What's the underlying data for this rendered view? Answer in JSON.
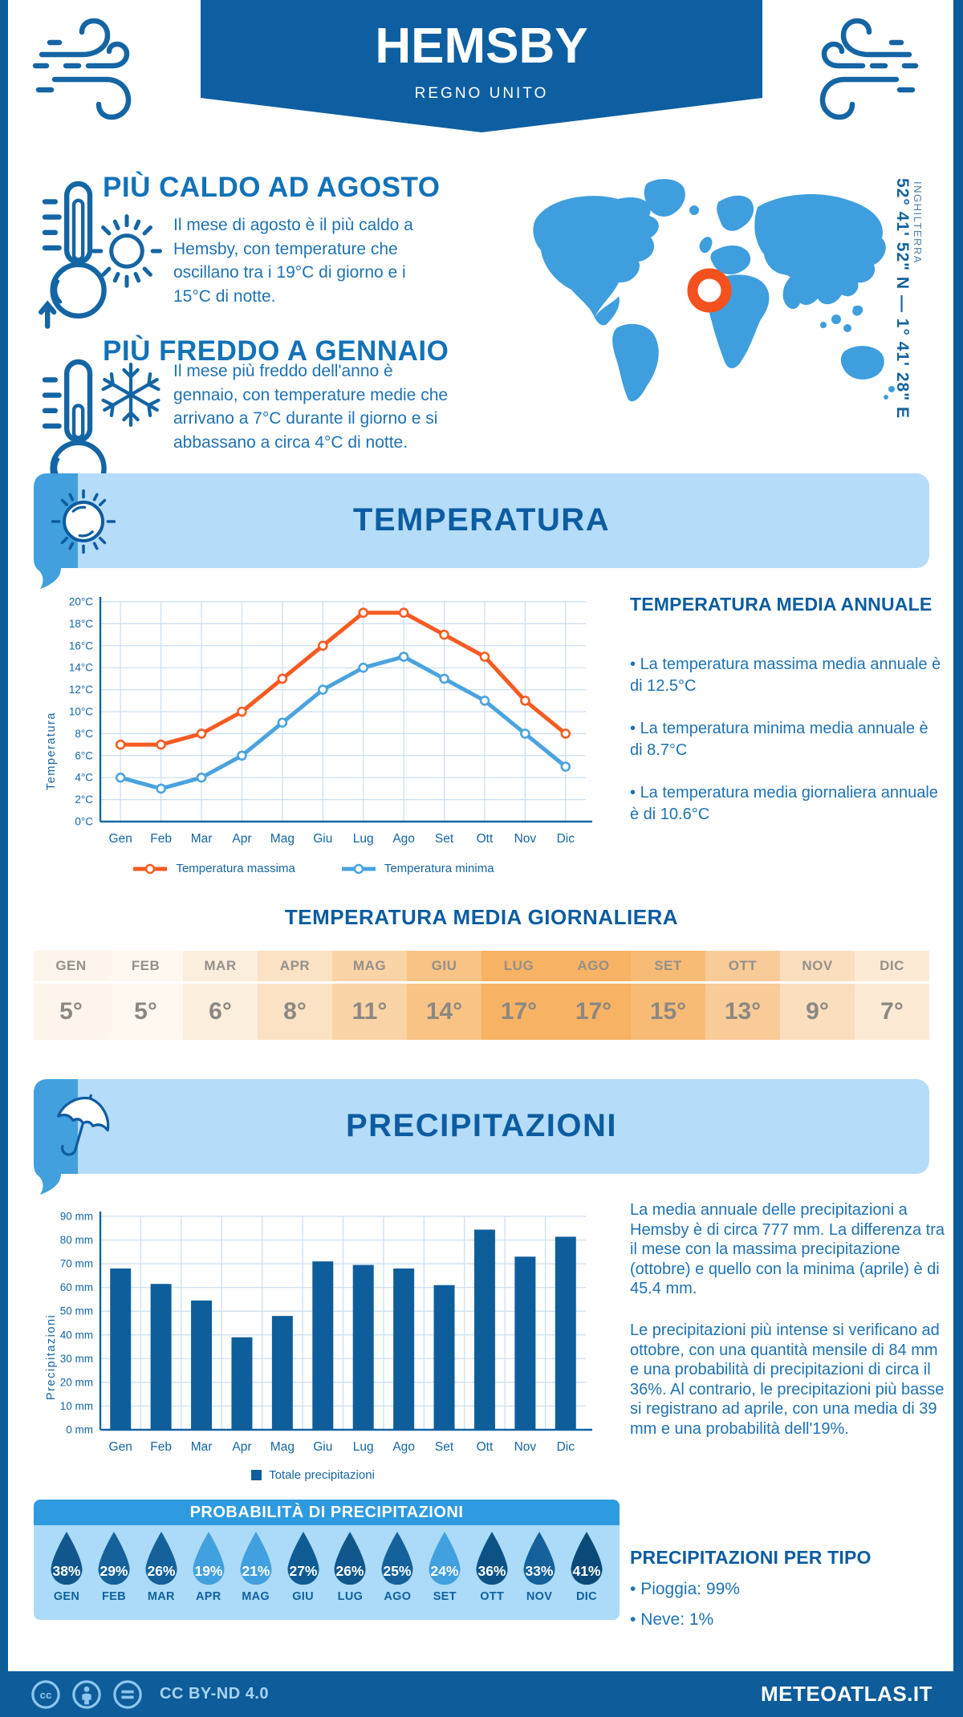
{
  "page": {
    "title": "HEMSBY",
    "subtitle": "REGNO UNITO",
    "coordinates": "52° 41' 52\" N — 1° 41' 28\" E",
    "region_label": "INGHILTERRA",
    "accent_dark_blue": "#0e5c99",
    "accent_medium_blue": "#3f9ede",
    "accent_light_blue": "#b5dcf8",
    "marker_orange": "#f4511e"
  },
  "highlights": {
    "hot": {
      "title": "PIÙ CALDO AD AGOSTO",
      "text": "Il mese di agosto è il più caldo a Hemsby, con temperature che oscillano tra i 19°C di giorno e i 15°C di notte."
    },
    "cold": {
      "title": "PIÙ FREDDO A GENNAIO",
      "text": "Il mese più freddo dell'anno è gennaio, con temperature medie che arrivano a 7°C durante il giorno e si abbassano a circa 4°C di notte."
    }
  },
  "temperature_section": {
    "banner": "TEMPERATURA",
    "axis_label": "Temperatura",
    "annual": {
      "title": "TEMPERATURA MEDIA ANNUALE",
      "bullets": [
        "La temperatura massima media annuale è di 12.5°C",
        "La temperatura minima media annuale è di 8.7°C",
        "La temperatura media giornaliera annuale è di 10.6°C"
      ]
    },
    "daily_table": {
      "title": "TEMPERATURA MEDIA GIORNALIERA",
      "months": [
        "GEN",
        "FEB",
        "MAR",
        "APR",
        "MAG",
        "GIU",
        "LUG",
        "AGO",
        "SET",
        "OTT",
        "NOV",
        "DIC"
      ],
      "values": [
        "5°",
        "5°",
        "6°",
        "8°",
        "11°",
        "14°",
        "17°",
        "17°",
        "15°",
        "13°",
        "9°",
        "7°"
      ],
      "cell_colors": [
        "#fdf5ec",
        "#fef8f1",
        "#fceedc",
        "#fbe2c4",
        "#fad3a6",
        "#f8c384",
        "#f7b264",
        "#f7b264",
        "#f8bb76",
        "#f9cb98",
        "#fbdebe",
        "#fcead5"
      ]
    }
  },
  "precipitation_section": {
    "banner": "PRECIPITAZIONI",
    "axis_label": "Precipitazioni",
    "text1": "La media annuale delle precipitazioni a Hemsby è di circa 777 mm. La differenza tra il mese con la massima precipitazione (ottobre) e quello con la minima (aprile) è di 45.4 mm.",
    "text2": "Le precipitazioni più intense si verificano ad ottobre, con una quantità mensile di 84 mm e una probabilità di precipitazioni di circa il 36%. Al contrario, le precipitazioni più basse si registrano ad aprile, con una media di 39 mm e una probabilità dell'19%.",
    "probability": {
      "title": "PROBABILITÀ DI PRECIPITAZIONI",
      "months": [
        "GEN",
        "FEB",
        "MAR",
        "APR",
        "MAG",
        "GIU",
        "LUG",
        "AGO",
        "SET",
        "OTT",
        "NOV",
        "DIC"
      ],
      "values": [
        "38%",
        "29%",
        "26%",
        "19%",
        "21%",
        "27%",
        "26%",
        "25%",
        "24%",
        "36%",
        "33%",
        "41%"
      ],
      "drop_colors": [
        "#11568c",
        "#14619c",
        "#14619c",
        "#41a0df",
        "#41a0df",
        "#0f5c95",
        "#11568c",
        "#14619c",
        "#41a0df",
        "#0d5286",
        "#14619c",
        "#0b4a78"
      ]
    },
    "per_type": {
      "title": "PRECIPITAZIONI PER TIPO",
      "items": [
        "Pioggia: 99%",
        "Neve: 1%"
      ]
    }
  },
  "footer": {
    "license": "CC BY-ND 4.0",
    "site": "METEOATLAS.IT"
  },
  "chart_data": [
    {
      "type": "line",
      "title": "Temperatura",
      "categories": [
        "Gen",
        "Feb",
        "Mar",
        "Apr",
        "Mag",
        "Giu",
        "Lug",
        "Ago",
        "Set",
        "Ott",
        "Nov",
        "Dic"
      ],
      "series": [
        {
          "name": "Temperatura massima",
          "color": "#f75b22",
          "values": [
            7,
            7,
            8,
            10,
            13,
            16,
            19,
            19,
            17,
            15,
            11,
            8
          ]
        },
        {
          "name": "Temperatura minima",
          "color": "#4aa3df",
          "values": [
            4,
            3,
            4,
            6,
            9,
            12,
            14,
            15,
            13,
            11,
            8,
            5
          ]
        }
      ],
      "ylabel": "Temperatura",
      "ylim": [
        0,
        20
      ],
      "ystep": 2,
      "yunit": "°C",
      "grid": true,
      "legend_position": "bottom"
    },
    {
      "type": "bar",
      "title": "Precipitazioni",
      "categories": [
        "Gen",
        "Feb",
        "Mar",
        "Apr",
        "Mag",
        "Giu",
        "Lug",
        "Ago",
        "Set",
        "Ott",
        "Nov",
        "Dic"
      ],
      "values": [
        68,
        61.5,
        54.5,
        39,
        48,
        71,
        69.5,
        68,
        61,
        84.4,
        73,
        81.4
      ],
      "bar_color": "#0f5e9c",
      "legend": "Totale precipitazioni",
      "ylabel": "Precipitazioni",
      "ylim": [
        0,
        90
      ],
      "ystep": 10,
      "yunit": " mm",
      "grid": true,
      "legend_position": "bottom"
    }
  ]
}
